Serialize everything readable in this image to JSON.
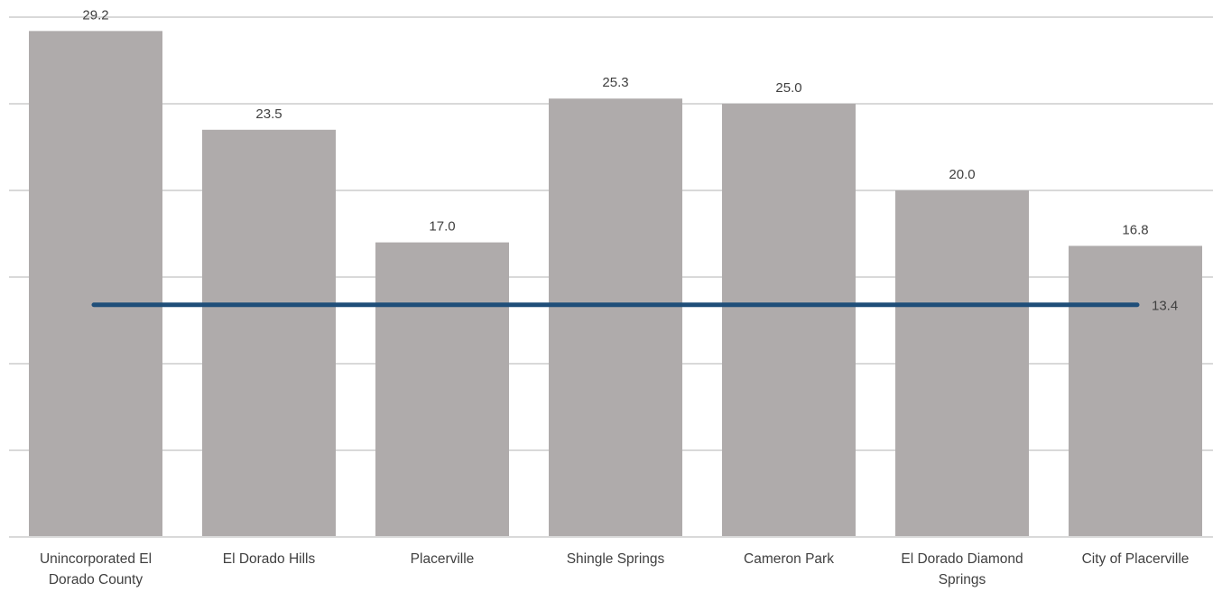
{
  "chart_data": {
    "type": "bar",
    "categories": [
      [
        "Unincorporated El",
        "Dorado County"
      ],
      [
        "El Dorado Hills"
      ],
      [
        "Placerville"
      ],
      [
        "Shingle Springs"
      ],
      [
        "Cameron Park"
      ],
      [
        "El Dorado Diamond",
        "Springs"
      ],
      [
        "City of Placerville"
      ]
    ],
    "values": [
      29.2,
      23.5,
      17.0,
      25.3,
      25.0,
      20.0,
      16.8
    ],
    "value_labels": [
      "29.2",
      "23.5",
      "17.0",
      "25.3",
      "25.0",
      "20.0",
      "16.8"
    ],
    "reference_line": {
      "value": 13.4,
      "label": "13.4"
    },
    "ylim": [
      0,
      30
    ],
    "y_grid_step": 5,
    "grid": true,
    "title": "",
    "xlabel": "",
    "ylabel": "",
    "colors": {
      "bar": "#afabab",
      "line": "#1f4e79",
      "grid": "#d9d9d9",
      "text": "#404040"
    }
  }
}
